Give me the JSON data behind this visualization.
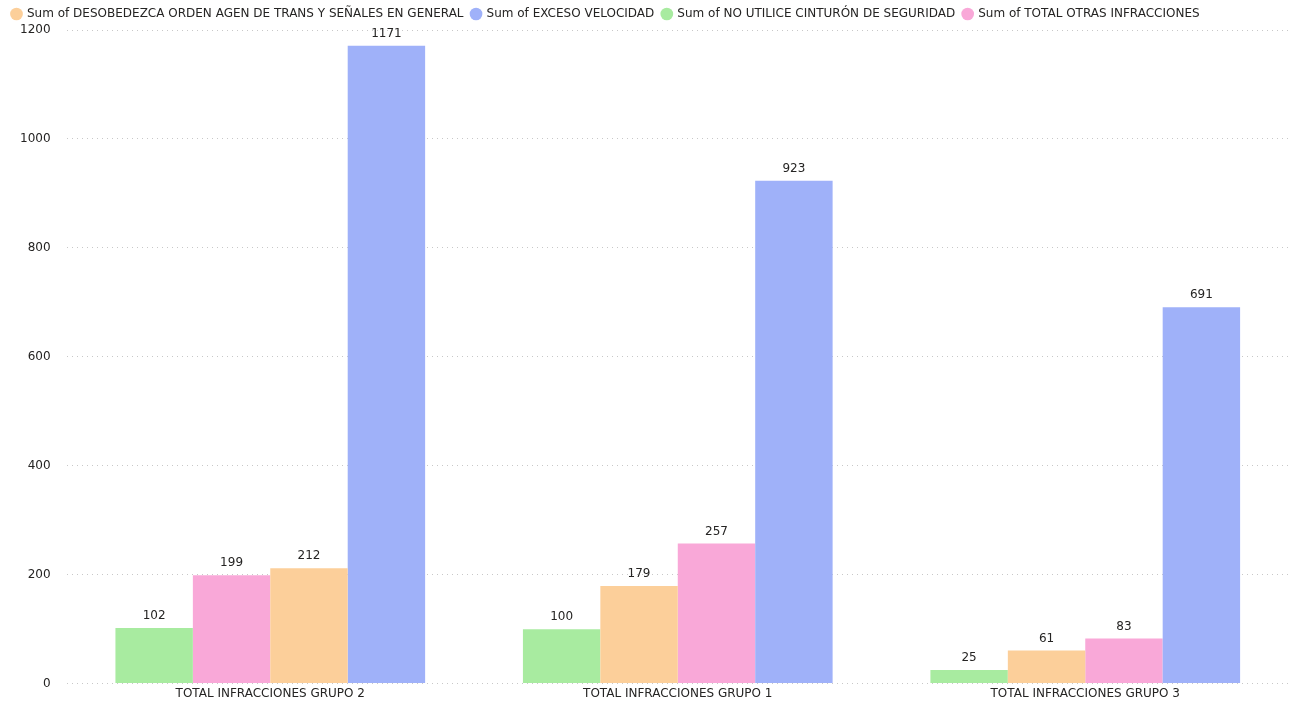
{
  "chart_data": {
    "type": "bar",
    "categories": [
      "TOTAL INFRACCIONES GRUPO 2",
      "TOTAL INFRACCIONES GRUPO 1",
      "TOTAL INFRACCIONES GRUPO 3"
    ],
    "series": [
      {
        "name": "Sum of DESOBEDEZCA ORDEN AGEN DE TRANS Y SEÑALES EN GENERAL",
        "color": "#fccf9a",
        "values": [
          212,
          179,
          61
        ]
      },
      {
        "name": "Sum of EXCESO VELOCIDAD",
        "color": "#9fb1f9",
        "values": [
          1171,
          923,
          691
        ]
      },
      {
        "name": "Sum of NO UTILICE CINTURÓN DE SEGURIDAD",
        "color": "#a8eba0",
        "values": [
          102,
          100,
          25
        ]
      },
      {
        "name": "Sum of TOTAL OTRAS INFRACCIONES",
        "color": "#f9a8d8",
        "values": [
          199,
          257,
          83
        ]
      }
    ],
    "ylim": [
      0,
      1200
    ],
    "yticks": [
      0,
      200,
      400,
      600,
      800,
      1000,
      1200
    ],
    "grid": "y",
    "legend": "top left",
    "data_labels": true
  }
}
